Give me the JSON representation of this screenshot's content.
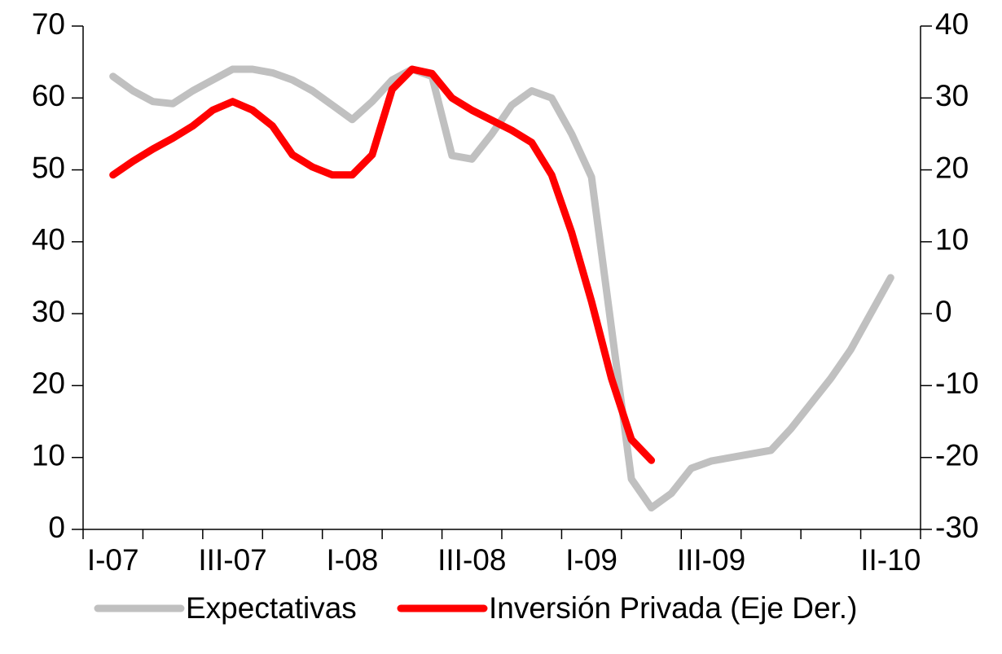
{
  "chart_data": {
    "type": "line",
    "categories": [
      null,
      "I-07",
      null,
      null,
      null,
      null,
      null,
      "III-07",
      null,
      null,
      null,
      null,
      null,
      "I-08",
      null,
      null,
      null,
      null,
      null,
      "III-08",
      null,
      null,
      null,
      null,
      null,
      "I-09",
      null,
      null,
      null,
      null,
      null,
      "III-09",
      null,
      null,
      null,
      null,
      null,
      null,
      null,
      null,
      "II-10",
      null
    ],
    "series": [
      {
        "name": "Expectativas",
        "color": "#c0c0c0",
        "axis": "y",
        "values": [
          null,
          63,
          61,
          59.5,
          59.2,
          61,
          62.5,
          64,
          64,
          63.5,
          62.5,
          61,
          59,
          57,
          59.5,
          62.5,
          64,
          63,
          52,
          51.5,
          55,
          59,
          61,
          60,
          55,
          49,
          28,
          7,
          3,
          5,
          8.5,
          9.5,
          10,
          10.5,
          11,
          14,
          17.5,
          21,
          25,
          30,
          35,
          null
        ]
      },
      {
        "name": "Inversión Privada (Eje Der.)",
        "color": "#ff0000",
        "axis": "y2",
        "values": [
          null,
          19.3,
          21.2,
          22.9,
          24.4,
          26.1,
          28.3,
          29.5,
          28.3,
          26.1,
          22.1,
          20.4,
          19.3,
          19.3,
          22.1,
          31.2,
          34,
          33.4,
          30,
          28.3,
          26.9,
          25.5,
          23.8,
          19.3,
          11.3,
          1.7,
          -9,
          -17.5,
          -20.4,
          null,
          null,
          null,
          null,
          null,
          null,
          null,
          null,
          null,
          null,
          null,
          null,
          null
        ]
      }
    ],
    "ylim": [
      0,
      70
    ],
    "yticks": [
      0,
      10,
      20,
      30,
      40,
      50,
      60,
      70
    ],
    "y2lim": [
      -30,
      40
    ],
    "y2ticks": [
      -30,
      -20,
      -10,
      0,
      10,
      20,
      30,
      40
    ],
    "legend": "bottom"
  }
}
